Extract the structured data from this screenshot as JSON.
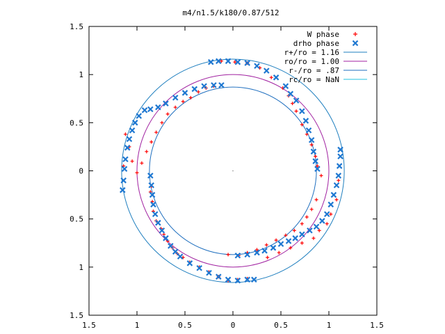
{
  "chart_data": {
    "type": "scatter",
    "title": "m4/n1.5/k180/0.87/512",
    "xlabel": "",
    "ylabel": "",
    "xlim": [
      -1.5,
      1.5
    ],
    "ylim": [
      -1.5,
      1.5
    ],
    "x_tick_values": [
      -1.5,
      -1,
      -0.5,
      0,
      0.5,
      1,
      1.5
    ],
    "x_tick_labels": [
      "1.5",
      "1",
      "0.5",
      "0",
      "0.5",
      "1",
      "1.5"
    ],
    "y_tick_values": [
      1.5,
      1,
      0.5,
      0,
      -0.5,
      -1,
      -1.5
    ],
    "y_tick_labels": [
      "1.5",
      "1",
      "0.5",
      "0",
      "0.5",
      "1",
      "1.5"
    ],
    "legend_position": "top-right",
    "grid": false,
    "series": [
      {
        "name": "W phase",
        "marker": "plus",
        "color": "#ff0000",
        "points": [
          [
            -0.85,
            -0.16
          ],
          [
            -0.86,
            -0.22
          ],
          [
            -0.84,
            -0.32
          ],
          [
            -0.83,
            -0.42
          ],
          [
            -0.8,
            -0.52
          ],
          [
            -0.75,
            -0.6
          ],
          [
            -0.72,
            -0.66
          ],
          [
            -0.68,
            -0.73
          ],
          [
            -0.63,
            -0.8
          ],
          [
            -0.58,
            -0.86
          ],
          [
            -0.05,
            -0.87
          ],
          [
            0.06,
            -0.88
          ],
          [
            0.15,
            -0.85
          ],
          [
            0.25,
            -0.82
          ],
          [
            0.35,
            -0.77
          ],
          [
            0.45,
            -0.72
          ],
          [
            0.55,
            -0.67
          ],
          [
            0.64,
            -0.62
          ],
          [
            0.72,
            -0.55
          ],
          [
            0.77,
            -0.48
          ],
          [
            0.82,
            -0.4
          ],
          [
            0.87,
            -0.3
          ],
          [
            0.92,
            -0.05
          ],
          [
            0.88,
            0.05
          ],
          [
            0.86,
            0.15
          ],
          [
            0.82,
            0.27
          ],
          [
            0.77,
            0.38
          ],
          [
            0.72,
            0.48
          ],
          [
            0.66,
            0.62
          ],
          [
            0.62,
            0.7
          ],
          [
            0.58,
            0.78
          ],
          [
            0.52,
            0.86
          ],
          [
            0.4,
            0.97
          ],
          [
            0.28,
            1.07
          ],
          [
            0.15,
            1.12
          ],
          [
            0.02,
            1.13
          ],
          [
            -0.12,
            1.14
          ],
          [
            -0.2,
            0.88
          ],
          [
            -0.28,
            0.86
          ],
          [
            -0.36,
            0.82
          ],
          [
            -0.44,
            0.76
          ],
          [
            -0.52,
            0.72
          ],
          [
            -0.6,
            0.66
          ],
          [
            -0.68,
            0.59
          ],
          [
            -0.74,
            0.5
          ],
          [
            -0.8,
            0.4
          ],
          [
            -0.85,
            0.3
          ],
          [
            -0.9,
            0.2
          ],
          [
            -0.95,
            0.08
          ],
          [
            -1.0,
            -0.02
          ],
          [
            -1.05,
            0.1
          ],
          [
            -1.08,
            0.25
          ],
          [
            -1.12,
            0.38
          ],
          [
            -1.14,
            0.05
          ],
          [
            -0.52,
            -0.9
          ],
          [
            -0.45,
            -0.95
          ],
          [
            -0.35,
            -1.0
          ],
          [
            -0.25,
            -1.05
          ],
          [
            -0.15,
            -1.1
          ],
          [
            -0.05,
            -1.14
          ],
          [
            0.05,
            -1.13
          ],
          [
            0.15,
            -1.12
          ],
          [
            1.1,
            -0.1
          ],
          [
            1.08,
            -0.3
          ],
          [
            1.02,
            -0.45
          ],
          [
            0.98,
            -0.55
          ],
          [
            0.9,
            -0.62
          ],
          [
            0.84,
            -0.7
          ],
          [
            0.72,
            -0.75
          ],
          [
            0.6,
            -0.8
          ],
          [
            0.48,
            -0.85
          ],
          [
            0.36,
            -0.9
          ]
        ]
      },
      {
        "name": "drho phase",
        "marker": "cross",
        "color": "#1f78d1",
        "points": [
          [
            -1.15,
            -0.2
          ],
          [
            -1.14,
            -0.1
          ],
          [
            -1.13,
            0.02
          ],
          [
            -1.12,
            0.12
          ],
          [
            -1.1,
            0.24
          ],
          [
            -1.08,
            0.33
          ],
          [
            -1.05,
            0.42
          ],
          [
            -1.02,
            0.5
          ],
          [
            -0.98,
            0.57
          ],
          [
            -0.92,
            0.63
          ],
          [
            -0.86,
            0.64
          ],
          [
            -0.78,
            0.66
          ],
          [
            -0.7,
            0.7
          ],
          [
            -0.6,
            0.76
          ],
          [
            -0.5,
            0.81
          ],
          [
            -0.4,
            0.85
          ],
          [
            -0.3,
            0.88
          ],
          [
            -0.2,
            0.89
          ],
          [
            -0.12,
            0.89
          ],
          [
            -0.23,
            1.13
          ],
          [
            -0.15,
            1.14
          ],
          [
            -0.05,
            1.14
          ],
          [
            0.05,
            1.13
          ],
          [
            0.15,
            1.12
          ],
          [
            0.25,
            1.09
          ],
          [
            0.35,
            1.04
          ],
          [
            0.45,
            0.97
          ],
          [
            0.55,
            0.88
          ],
          [
            0.6,
            0.8
          ],
          [
            0.66,
            0.73
          ],
          [
            0.72,
            0.62
          ],
          [
            0.76,
            0.52
          ],
          [
            0.79,
            0.42
          ],
          [
            0.82,
            0.32
          ],
          [
            0.84,
            0.2
          ],
          [
            0.86,
            0.1
          ],
          [
            0.88,
            0.02
          ],
          [
            1.12,
            0.22
          ],
          [
            1.12,
            0.15
          ],
          [
            1.11,
            0.05
          ],
          [
            1.1,
            -0.05
          ],
          [
            1.08,
            -0.15
          ],
          [
            1.05,
            -0.25
          ],
          [
            1.02,
            -0.35
          ],
          [
            0.98,
            -0.45
          ],
          [
            0.93,
            -0.52
          ],
          [
            0.87,
            -0.58
          ],
          [
            0.8,
            -0.62
          ],
          [
            0.72,
            -0.66
          ],
          [
            0.65,
            -0.7
          ],
          [
            0.58,
            -0.73
          ],
          [
            0.5,
            -0.76
          ],
          [
            0.42,
            -0.8
          ],
          [
            0.33,
            -0.83
          ],
          [
            0.25,
            -0.85
          ],
          [
            0.15,
            -0.87
          ],
          [
            0.05,
            -0.88
          ],
          [
            0.22,
            -1.13
          ],
          [
            0.15,
            -1.13
          ],
          [
            0.05,
            -1.14
          ],
          [
            -0.05,
            -1.13
          ],
          [
            -0.15,
            -1.1
          ],
          [
            -0.25,
            -1.06
          ],
          [
            -0.35,
            -1.01
          ],
          [
            -0.45,
            -0.96
          ],
          [
            -0.55,
            -0.89
          ],
          [
            -0.6,
            -0.84
          ],
          [
            -0.65,
            -0.78
          ],
          [
            -0.7,
            -0.7
          ],
          [
            -0.74,
            -0.62
          ],
          [
            -0.78,
            -0.54
          ],
          [
            -0.81,
            -0.45
          ],
          [
            -0.83,
            -0.35
          ],
          [
            -0.84,
            -0.25
          ],
          [
            -0.85,
            -0.15
          ],
          [
            -0.86,
            -0.05
          ]
        ]
      }
    ],
    "curves": [
      {
        "name": "r+/ro = 1.16",
        "radius": 1.16,
        "color": "#1f7fbf"
      },
      {
        "name": "ro/ro = 1.00",
        "radius": 1.0,
        "color": "#a020a0"
      },
      {
        "name": "r-/ro = .87",
        "radius": 0.87,
        "color": "#1f6fbf"
      },
      {
        "name": "rc/ro = NaN",
        "radius": null,
        "color": "#20c0e0"
      }
    ]
  }
}
